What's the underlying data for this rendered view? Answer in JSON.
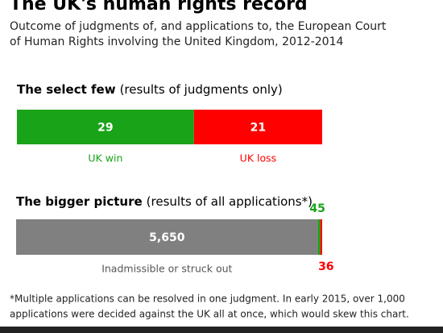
{
  "title": "The UK's human rights record",
  "subtitle": [
    "Outcome of judgments of, and applications to, the European Court",
    "of Human Rights involving the United Kingdom, 2012-2014"
  ],
  "chart_data": [
    {
      "type": "stacked-bar",
      "title": "The select few",
      "subtitle": "(results of judgments only)",
      "series": [
        {
          "name": "UK win",
          "color": "#19a319",
          "values": [
            29
          ]
        },
        {
          "name": "UK loss",
          "color": "#ff0000",
          "values": [
            21
          ]
        }
      ]
    },
    {
      "type": "stacked-bar",
      "title": "The bigger picture",
      "subtitle": "(results of all applications*)",
      "series": [
        {
          "name": "Inadmissible or struck out",
          "color": "#808080",
          "values": [
            5650
          ],
          "value_labels": [
            "5,650"
          ]
        },
        {
          "color": "#19a319",
          "values": [
            45
          ]
        },
        {
          "color": "#ff0000",
          "values": [
            36
          ]
        }
      ]
    }
  ],
  "footnote": [
    "*Multiple applications can be resolved in one judgment. In early 2015, over 1,000",
    "applications were decided against the UK all at once, which would skew this chart."
  ]
}
